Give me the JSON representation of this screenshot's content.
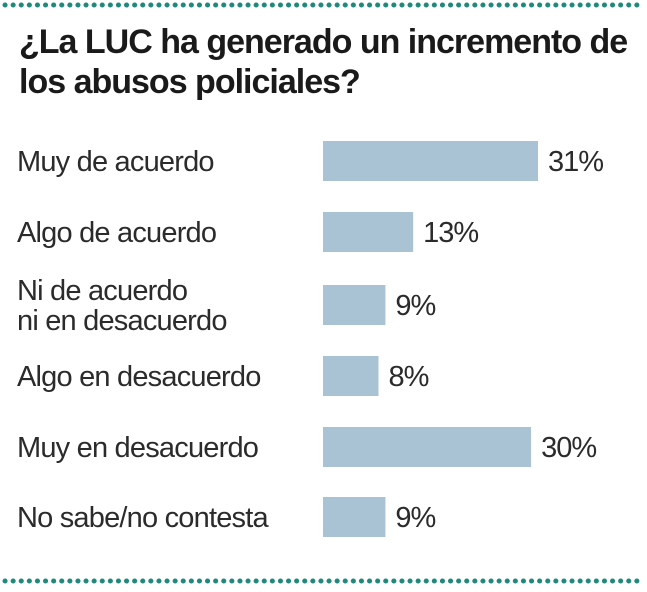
{
  "title": "¿La LUC ha generado un incremento de los abusos policiales?",
  "colors": {
    "bar": "#a9c2d4",
    "dots": "#1f8a7c",
    "text": "#2b2b2b"
  },
  "chart_data": {
    "type": "bar",
    "orientation": "horizontal",
    "title": "¿La LUC ha generado un incremento de los abusos policiales?",
    "categories": [
      [
        "Muy de acuerdo"
      ],
      [
        "Algo de acuerdo"
      ],
      [
        "Ni de acuerdo",
        "ni en desacuerdo"
      ],
      [
        "Algo en desacuerdo"
      ],
      [
        "Muy en desacuerdo"
      ],
      [
        "No sabe/no contesta"
      ]
    ],
    "values": [
      31,
      13,
      9,
      8,
      30,
      9
    ],
    "value_labels": [
      "31%",
      "13%",
      "9%",
      "8%",
      "30%",
      "9%"
    ],
    "unit": "%",
    "xlim": [
      0,
      31
    ]
  }
}
